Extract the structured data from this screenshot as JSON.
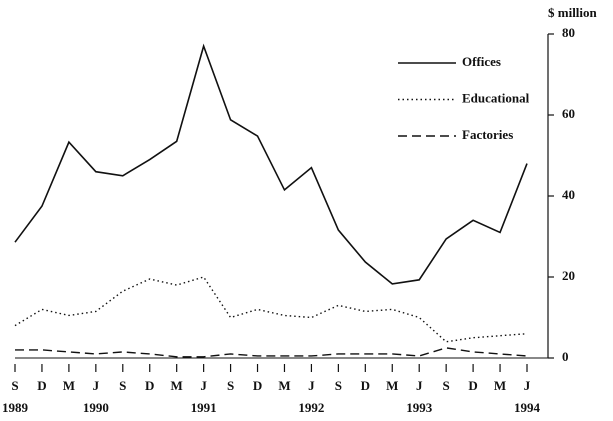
{
  "chart_data": {
    "type": "line",
    "y_axis_label": "$ million",
    "categories": [
      "S",
      "D",
      "M",
      "J",
      "S",
      "D",
      "M",
      "J",
      "S",
      "D",
      "M",
      "J",
      "S",
      "D",
      "M",
      "J",
      "S",
      "D",
      "M",
      "J"
    ],
    "years": [
      "1989",
      null,
      null,
      "1990",
      null,
      null,
      null,
      "1991",
      null,
      null,
      null,
      "1992",
      null,
      null,
      null,
      "1993",
      null,
      null,
      null,
      "1994"
    ],
    "series": [
      {
        "name": "Offices",
        "color": "#111111",
        "dash": "solid",
        "values": [
          28.6,
          37.5,
          53.3,
          46,
          45,
          49,
          53.5,
          77,
          58.8,
          54.8,
          41.5,
          47,
          31.6,
          23.7,
          18.3,
          19.3,
          29.4,
          34,
          31,
          48
        ]
      },
      {
        "name": "Educational",
        "color": "#111111",
        "dash": "dotted",
        "values": [
          8,
          12,
          10.5,
          11.5,
          16.5,
          19.5,
          18,
          20,
          10,
          12,
          10.5,
          10,
          13,
          11.5,
          12,
          10,
          4,
          5,
          5.5,
          6
        ]
      },
      {
        "name": "Factories",
        "color": "#111111",
        "dash": "dashed",
        "values": [
          2,
          2,
          1.5,
          1,
          1.5,
          1,
          0.3,
          0.3,
          1,
          0.5,
          0.5,
          0.5,
          1,
          1,
          1,
          0.5,
          2.5,
          1.5,
          1,
          0.5
        ]
      }
    ],
    "ylim": [
      0,
      80
    ],
    "yticks": [
      0,
      20,
      40,
      60,
      80
    ],
    "y_axis_side": "right",
    "legend": "upper right"
  }
}
